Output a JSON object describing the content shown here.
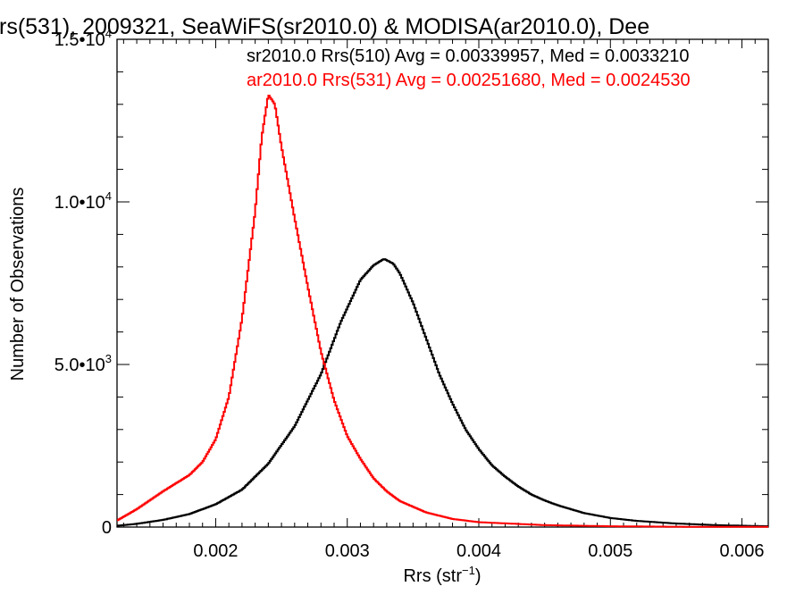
{
  "chart_data": {
    "type": "line",
    "title": "rs(531), 2009321, SeaWiFS(sr2010.0) & MODISA(ar2010.0), Dee",
    "xlabel_base": "Rrs (str",
    "xlabel_sup": "−1",
    "xlabel_close": ")",
    "ylabel": "Number of Observations",
    "xlim": [
      0.00125,
      0.0062
    ],
    "ylim": [
      0,
      15000
    ],
    "xticks": [
      {
        "value": 0.002,
        "label": "0.002"
      },
      {
        "value": 0.003,
        "label": "0.003"
      },
      {
        "value": 0.004,
        "label": "0.004"
      },
      {
        "value": 0.005,
        "label": "0.005"
      },
      {
        "value": 0.006,
        "label": "0.006"
      }
    ],
    "yticks": [
      {
        "value": 0,
        "base": "0",
        "exp": ""
      },
      {
        "value": 5000,
        "base": "5.0•10",
        "exp": "3"
      },
      {
        "value": 10000,
        "base": "1.0•10",
        "exp": "4"
      },
      {
        "value": 15000,
        "base": "1.5•10",
        "exp": "4"
      }
    ],
    "grid": false,
    "series": [
      {
        "name": "sr2010.0 Rrs(510) Avg = 0.00339957, Med = 0.0033210",
        "color": "#000000",
        "points": [
          [
            0.00125,
            40
          ],
          [
            0.0014,
            100
          ],
          [
            0.0016,
            220
          ],
          [
            0.0018,
            400
          ],
          [
            0.002,
            700
          ],
          [
            0.0022,
            1150
          ],
          [
            0.0024,
            1950
          ],
          [
            0.0026,
            3100
          ],
          [
            0.0028,
            4700
          ],
          [
            0.00295,
            6300
          ],
          [
            0.0031,
            7600
          ],
          [
            0.0032,
            8050
          ],
          [
            0.00328,
            8250
          ],
          [
            0.00335,
            8100
          ],
          [
            0.0034,
            7800
          ],
          [
            0.0035,
            6900
          ],
          [
            0.0036,
            5800
          ],
          [
            0.0037,
            4700
          ],
          [
            0.0038,
            3800
          ],
          [
            0.0039,
            3000
          ],
          [
            0.004,
            2400
          ],
          [
            0.0041,
            1900
          ],
          [
            0.0042,
            1550
          ],
          [
            0.0043,
            1250
          ],
          [
            0.0044,
            1000
          ],
          [
            0.0045,
            820
          ],
          [
            0.0046,
            670
          ],
          [
            0.0048,
            430
          ],
          [
            0.005,
            280
          ],
          [
            0.0052,
            190
          ],
          [
            0.0055,
            110
          ],
          [
            0.0058,
            60
          ],
          [
            0.0062,
            25
          ]
        ]
      },
      {
        "name": "ar2010.0 Rrs(531) Avg = 0.00251680, Med = 0.0024530",
        "color": "#ff0000",
        "points": [
          [
            0.00125,
            200
          ],
          [
            0.0014,
            550
          ],
          [
            0.0016,
            1100
          ],
          [
            0.0018,
            1600
          ],
          [
            0.0019,
            2000
          ],
          [
            0.002,
            2700
          ],
          [
            0.0021,
            4000
          ],
          [
            0.0022,
            6400
          ],
          [
            0.0023,
            9700
          ],
          [
            0.00235,
            12000
          ],
          [
            0.0024,
            13300
          ],
          [
            0.00245,
            13000
          ],
          [
            0.0025,
            11700
          ],
          [
            0.0026,
            9500
          ],
          [
            0.0027,
            7400
          ],
          [
            0.0028,
            5400
          ],
          [
            0.0029,
            3900
          ],
          [
            0.003,
            2800
          ],
          [
            0.0031,
            2100
          ],
          [
            0.0032,
            1500
          ],
          [
            0.0033,
            1100
          ],
          [
            0.0034,
            800
          ],
          [
            0.0036,
            450
          ],
          [
            0.0038,
            250
          ],
          [
            0.004,
            150
          ],
          [
            0.0045,
            60
          ],
          [
            0.005,
            25
          ],
          [
            0.0055,
            10
          ],
          [
            0.0062,
            5
          ]
        ]
      }
    ]
  }
}
